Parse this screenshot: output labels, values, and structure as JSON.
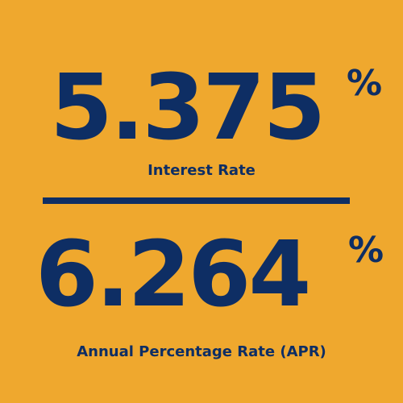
{
  "interest_rate": {
    "value": "5.375",
    "percent_sign": "%",
    "label": "Interest Rate"
  },
  "apr": {
    "value": "6.264",
    "percent_sign": "%",
    "label": "Annual Percentage Rate (APR)"
  },
  "colors": {
    "background": "#efa82e",
    "text": "#0e2e64"
  }
}
